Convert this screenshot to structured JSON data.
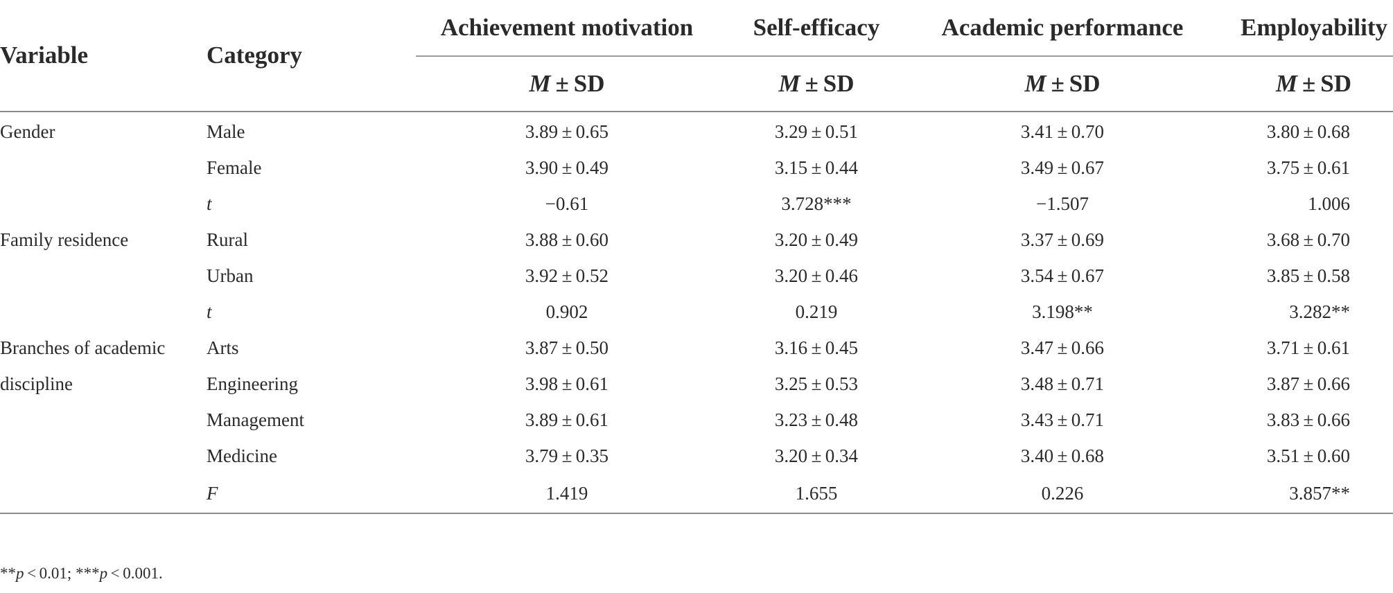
{
  "table": {
    "headers": {
      "variable": "Variable",
      "category": "Category",
      "columns": [
        "Achievement motivation",
        "Self-efficacy",
        "Academic performance",
        "Employability"
      ],
      "stat_m": "M",
      "stat_rest": " ± SD"
    },
    "rows": [
      {
        "variable": "Gender",
        "category": "Male",
        "values": [
          "3.89 ± 0.65",
          "3.29 ± 0.51",
          "3.41 ± 0.70",
          "3.80 ± 0.68"
        ]
      },
      {
        "variable": "",
        "category": "Female",
        "values": [
          "3.90 ± 0.49",
          "3.15 ± 0.44",
          "3.49 ± 0.67",
          "3.75 ± 0.61"
        ]
      },
      {
        "variable": "",
        "category": "t",
        "values": [
          "−0.61",
          "3.728***",
          "−1.507",
          "1.006"
        ]
      },
      {
        "variable": "Family residence",
        "category": "Rural",
        "values": [
          "3.88 ± 0.60",
          "3.20 ± 0.49",
          "3.37 ± 0.69",
          "3.68 ± 0.70"
        ]
      },
      {
        "variable": "",
        "category": "Urban",
        "values": [
          "3.92 ± 0.52",
          "3.20 ± 0.46",
          "3.54 ± 0.67",
          "3.85 ± 0.58"
        ]
      },
      {
        "variable": "",
        "category": "t",
        "values": [
          "0.902",
          "0.219",
          "3.198**",
          "3.282**"
        ]
      },
      {
        "variable": "Branches of academic",
        "category": "Arts",
        "values": [
          "3.87 ± 0.50",
          "3.16 ± 0.45",
          "3.47 ± 0.66",
          "3.71 ± 0.61"
        ]
      },
      {
        "variable": "discipline",
        "category": "Engineering",
        "values": [
          "3.98 ± 0.61",
          "3.25 ± 0.53",
          "3.48 ± 0.71",
          "3.87 ± 0.66"
        ]
      },
      {
        "variable": "",
        "category": "Management",
        "values": [
          "3.89 ± 0.61",
          "3.23 ± 0.48",
          "3.43 ± 0.71",
          "3.83 ± 0.66"
        ]
      },
      {
        "variable": "",
        "category": "Medicine",
        "values": [
          "3.79 ± 0.35",
          "3.20 ± 0.34",
          "3.40 ± 0.68",
          "3.51 ± 0.60"
        ]
      },
      {
        "variable": "",
        "category": "F",
        "values": [
          "1.419",
          "1.655",
          "0.226",
          "3.857**"
        ]
      }
    ]
  },
  "footnote": {
    "part1_stars": "**",
    "part1_p": "p",
    "part1_rest": " < 0.01;  ",
    "part2_stars": "***",
    "part2_p": "p",
    "part2_rest": " < 0.001."
  }
}
